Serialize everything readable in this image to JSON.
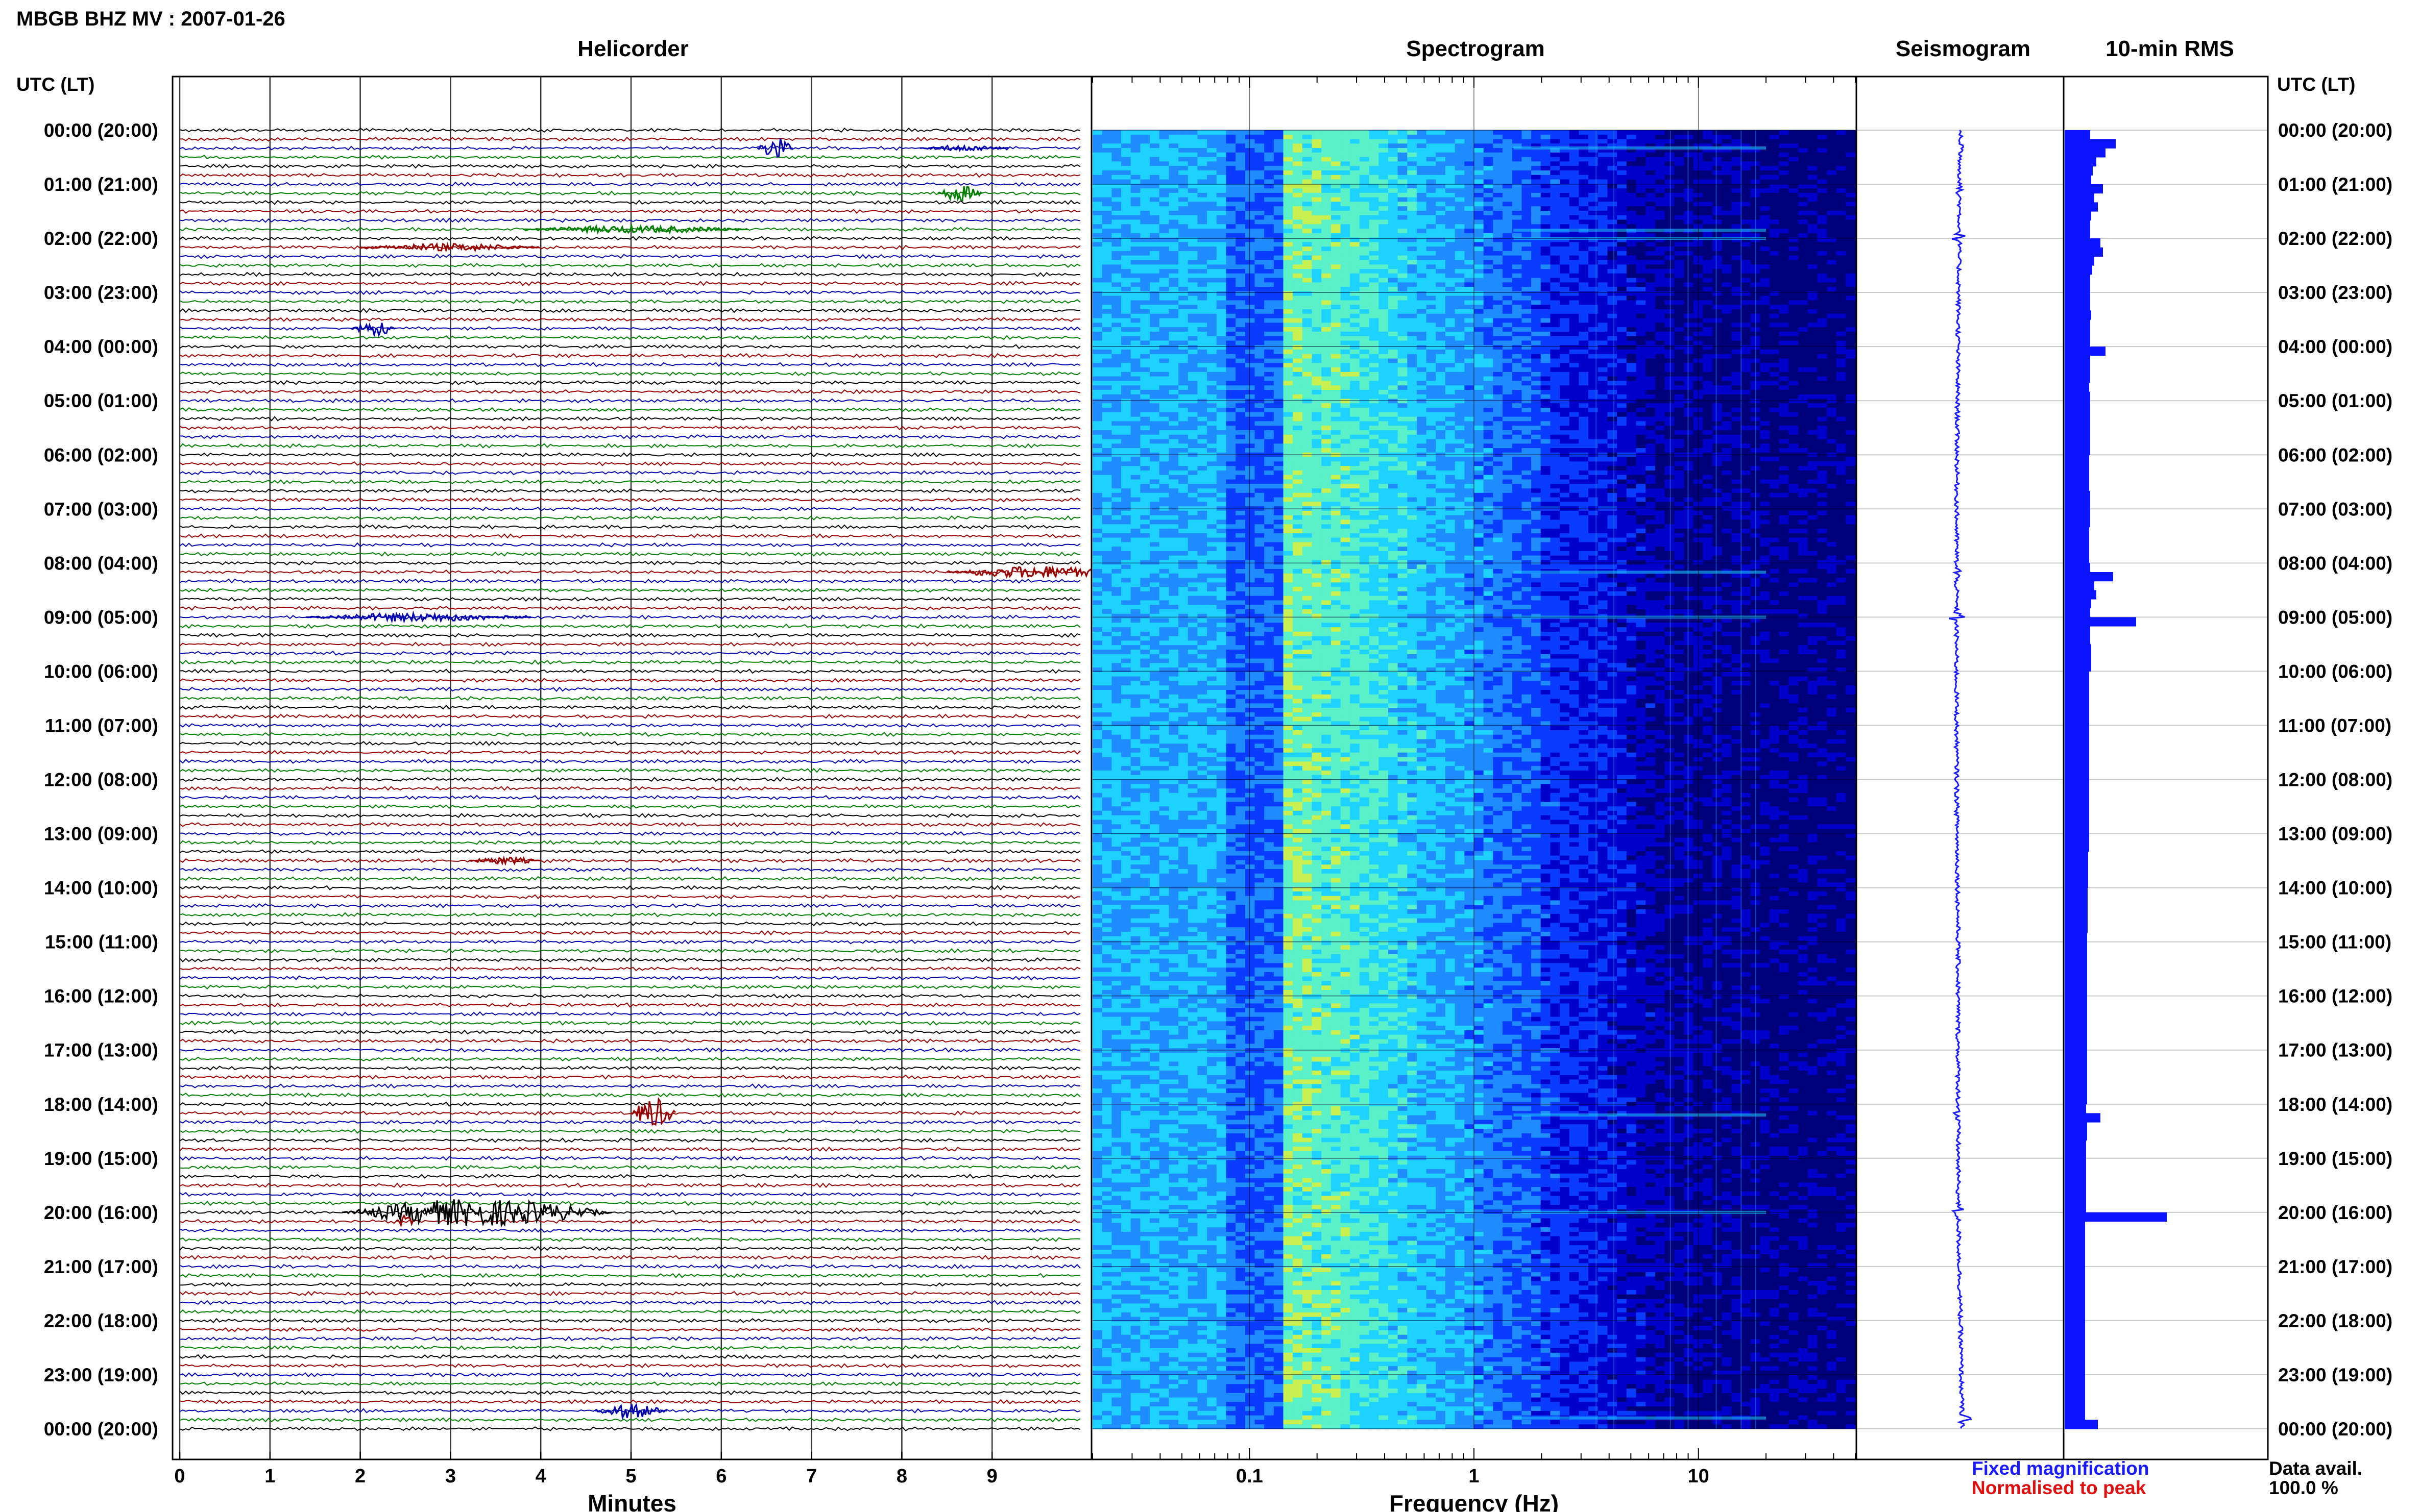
{
  "title": "MBGB BHZ MV : 2007-01-26",
  "panels": {
    "helicorder": "Helicorder",
    "spectrogram": "Spectrogram",
    "seismogram": "Seismogram",
    "rms": "10-min RMS"
  },
  "time_axis_label": "UTC (LT)",
  "legend": {
    "fixed": "Fixed magnification",
    "normalised": "Normalised to peak",
    "fixed_color": "#1a1aff",
    "normalised_color": "#e01010"
  },
  "data_avail": {
    "label": "Data avail.",
    "value": "100.0 %"
  },
  "colors": {
    "trace_cycle": [
      "#000000",
      "#9a0000",
      "#0000b0",
      "#008000"
    ],
    "rms_bar": "#0a14ff",
    "seismogram": "#1a1aff"
  },
  "chart_data": [
    {
      "type": "line",
      "panel": "helicorder",
      "xlabel": "Minutes",
      "xlim": [
        0,
        10
      ],
      "x_ticks": [
        "0",
        "1",
        "2",
        "3",
        "4",
        "5",
        "6",
        "7",
        "8",
        "9"
      ],
      "traces_per_hour": 6,
      "time_labels": [
        "00:00 (20:00)",
        "01:00 (21:00)",
        "02:00 (22:00)",
        "03:00 (23:00)",
        "04:00 (00:00)",
        "05:00 (01:00)",
        "06:00 (02:00)",
        "07:00 (03:00)",
        "08:00 (04:00)",
        "09:00 (05:00)",
        "10:00 (06:00)",
        "11:00 (07:00)",
        "12:00 (08:00)",
        "13:00 (09:00)",
        "14:00 (10:00)",
        "15:00 (11:00)",
        "16:00 (12:00)",
        "17:00 (13:00)",
        "18:00 (14:00)",
        "19:00 (15:00)",
        "20:00 (16:00)",
        "21:00 (17:00)",
        "22:00 (18:00)",
        "23:00 (19:00)",
        "00:00 (20:00)"
      ],
      "events": [
        {
          "hour": 0.33,
          "minute": 6.4,
          "duration": 0.4,
          "amp": 1.8
        },
        {
          "hour": 0.33,
          "minute": 8.2,
          "duration": 1.0,
          "amp": 0.5
        },
        {
          "hour": 1.17,
          "minute": 8.4,
          "duration": 0.5,
          "amp": 1.3
        },
        {
          "hour": 1.83,
          "minute": 3.8,
          "duration": 2.5,
          "amp": 0.6
        },
        {
          "hour": 2.17,
          "minute": 2.0,
          "duration": 2.0,
          "amp": 0.6
        },
        {
          "hour": 3.67,
          "minute": 1.9,
          "duration": 0.5,
          "amp": 1.2
        },
        {
          "hour": 8.17,
          "minute": 8.5,
          "duration": 2.0,
          "amp": 1.0
        },
        {
          "hour": 9.0,
          "minute": 1.4,
          "duration": 2.5,
          "amp": 0.7
        },
        {
          "hour": 13.5,
          "minute": 3.2,
          "duration": 0.8,
          "amp": 0.6
        },
        {
          "hour": 18.17,
          "minute": 5.0,
          "duration": 0.5,
          "amp": 2.5
        },
        {
          "hour": 20.0,
          "minute": 1.8,
          "duration": 3.0,
          "amp": 2.2
        },
        {
          "hour": 20.17,
          "minute": 2.4,
          "duration": 0.2,
          "amp": 1.0
        },
        {
          "hour": 23.67,
          "minute": 4.6,
          "duration": 0.8,
          "amp": 1.2
        }
      ]
    },
    {
      "type": "heatmap",
      "panel": "spectrogram",
      "xlabel": "Frequency (Hz)",
      "x_scale": "log",
      "xlim": [
        0.02,
        50
      ],
      "x_ticks": [
        "0.1",
        "1",
        "10"
      ],
      "colormap": [
        "#00007a",
        "#0000cc",
        "#0a3cff",
        "#1e8cff",
        "#1ed2ff",
        "#5af0c8",
        "#c8f050"
      ],
      "energy_peak_hz": 0.2
    },
    {
      "type": "line",
      "panel": "seismogram",
      "events_hours": [
        0.33,
        1.17,
        2.0,
        8.17,
        9.0,
        18.2,
        20.0,
        23.8
      ]
    },
    {
      "type": "bar",
      "panel": "rms",
      "orientation": "horizontal",
      "bin_minutes": 10,
      "values": [
        0.5,
        0.5,
        0.52,
        0.62,
        0.55,
        0.52,
        0.54,
        0.58,
        0.55,
        0.52,
        0.5,
        0.5,
        0.52,
        0.56,
        0.58,
        0.54,
        0.5,
        0.5,
        0.5,
        0.5,
        0.52,
        0.5,
        0.5,
        0.5,
        0.55,
        0.5,
        0.5,
        0.5,
        0.48,
        0.5,
        0.5,
        0.5,
        0.5,
        0.5,
        0.5,
        0.5,
        0.48,
        0.48,
        0.48,
        0.48,
        0.5,
        0.5,
        0.5,
        0.5,
        0.48,
        0.48,
        0.48,
        0.48,
        0.5,
        0.58,
        0.58,
        0.62,
        0.52,
        0.5,
        0.5,
        0.5,
        0.5,
        0.52,
        0.52,
        0.52,
        0.48,
        0.48,
        0.48,
        0.48,
        0.48,
        0.48,
        0.48,
        0.48,
        0.48,
        0.48,
        0.48,
        0.48,
        0.48,
        0.48,
        0.48,
        0.48,
        0.48,
        0.48,
        0.48,
        0.48,
        0.46,
        0.46,
        0.46,
        0.46,
        0.45,
        0.45,
        0.45,
        0.45,
        0.45,
        0.44,
        0.44,
        0.44,
        0.44,
        0.44,
        0.44,
        0.44,
        0.44,
        0.44,
        0.44,
        0.44,
        0.44,
        0.44,
        0.44,
        0.44,
        0.44,
        0.44,
        0.44,
        0.44,
        0.42,
        0.42,
        0.44,
        0.44,
        0.42,
        0.42,
        0.42,
        0.42,
        0.42,
        0.42,
        0.42,
        0.42,
        0.4,
        0.4,
        0.4,
        0.4,
        0.4,
        0.4,
        0.4,
        0.4,
        0.4,
        0.4,
        0.4,
        0.4,
        0.4,
        0.4,
        0.4,
        0.4,
        0.4,
        0.4,
        0.4,
        0.4,
        0.4,
        0.4,
        0.4,
        0.4
      ],
      "spikes": [
        {
          "bin": 1,
          "value": 1.0
        },
        {
          "bin": 2,
          "value": 0.8
        },
        {
          "bin": 6,
          "value": 0.75
        },
        {
          "bin": 8,
          "value": 0.65
        },
        {
          "bin": 12,
          "value": 0.7
        },
        {
          "bin": 13,
          "value": 0.75
        },
        {
          "bin": 24,
          "value": 0.8
        },
        {
          "bin": 49,
          "value": 0.95
        },
        {
          "bin": 54,
          "value": 1.4
        },
        {
          "bin": 109,
          "value": 0.7
        },
        {
          "bin": 120,
          "value": 2.0
        },
        {
          "bin": 143,
          "value": 0.65
        }
      ]
    }
  ]
}
